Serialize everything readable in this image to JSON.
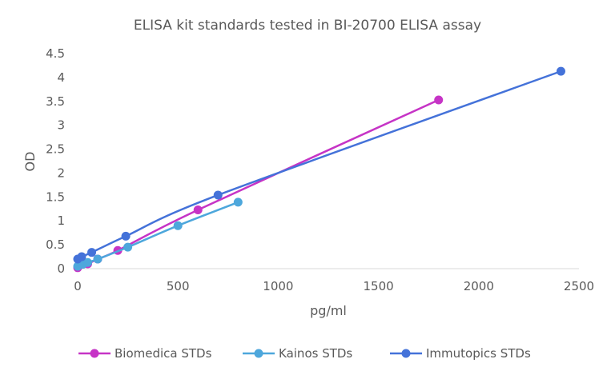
{
  "chart_data": {
    "type": "scatter",
    "title": "ELISA kit standards tested in BI-20700 ELISA assay",
    "xlabel": "pg/ml",
    "ylabel": "OD",
    "xlim": [
      0,
      2500
    ],
    "ylim": [
      0,
      4.5
    ],
    "x_ticks": [
      0,
      500,
      1000,
      1500,
      2000,
      2500
    ],
    "y_ticks": [
      0,
      0.5,
      1,
      1.5,
      2,
      2.5,
      3,
      3.5,
      4,
      4.5
    ],
    "y_tick_labels": [
      "0",
      "0.5",
      "1",
      "1.5",
      "2",
      "2.5",
      "3",
      "3.5",
      "4",
      "4.5"
    ],
    "grid": false,
    "legend_position": "bottom",
    "series": [
      {
        "name": "Biomedica STDs",
        "color": "#c634c6",
        "points": [
          {
            "x": 0,
            "y": 0.02
          },
          {
            "x": 50,
            "y": 0.1
          },
          {
            "x": 100,
            "y": 0.2
          },
          {
            "x": 200,
            "y": 0.38
          },
          {
            "x": 600,
            "y": 1.23
          },
          {
            "x": 1800,
            "y": 3.53
          }
        ]
      },
      {
        "name": "Kainos STDs",
        "color": "#4da7dc",
        "points": [
          {
            "x": 0,
            "y": 0.05
          },
          {
            "x": 25,
            "y": 0.09
          },
          {
            "x": 50,
            "y": 0.13
          },
          {
            "x": 100,
            "y": 0.2
          },
          {
            "x": 250,
            "y": 0.45
          },
          {
            "x": 500,
            "y": 0.9
          },
          {
            "x": 800,
            "y": 1.39
          }
        ]
      },
      {
        "name": "Immutopics STDs",
        "color": "#4472d9",
        "points": [
          {
            "x": 0,
            "y": 0.2
          },
          {
            "x": 20,
            "y": 0.25
          },
          {
            "x": 70,
            "y": 0.34
          },
          {
            "x": 240,
            "y": 0.68
          },
          {
            "x": 700,
            "y": 1.54
          },
          {
            "x": 2410,
            "y": 4.13
          }
        ]
      }
    ]
  }
}
